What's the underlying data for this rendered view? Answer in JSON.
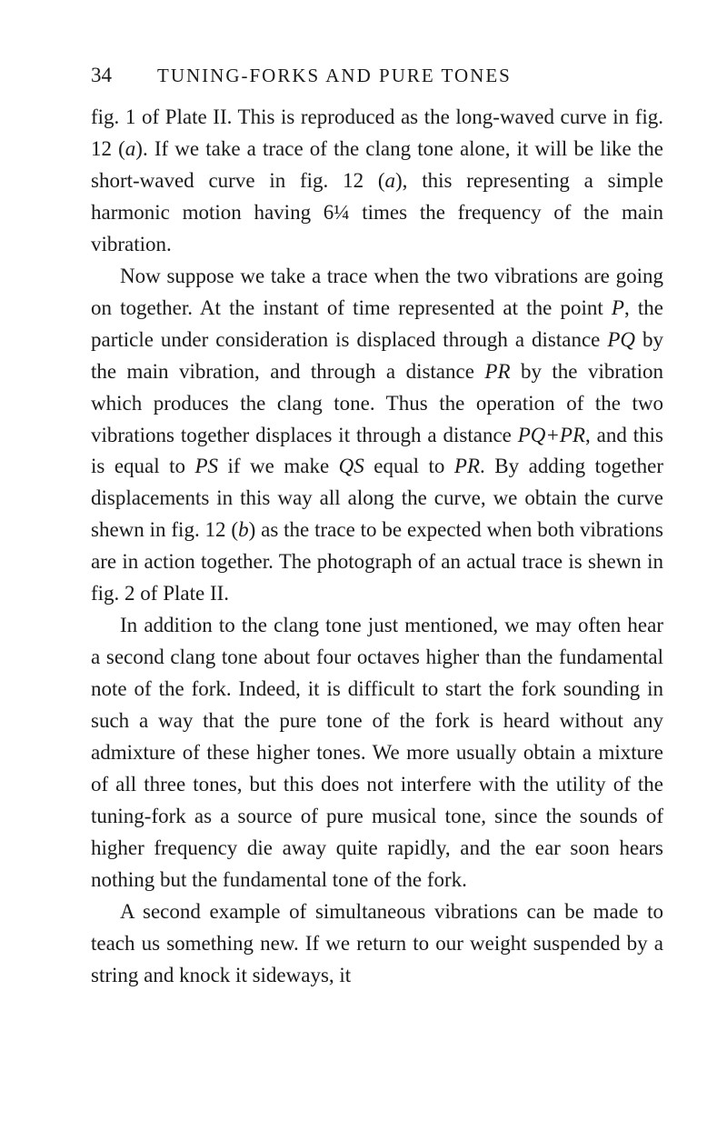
{
  "page": {
    "number": "34",
    "chapterTitle": "TUNING-FORKS AND PURE TONES"
  },
  "paragraphs": {
    "p1": {
      "pre1": "fig. 1 of Plate II. This is reproduced as the long-waved curve in fig. 12 (",
      "i1": "a",
      "mid1": "). If we take a trace of the clang tone alone, it will be like the short-waved curve in fig. 12 (",
      "i2": "a",
      "post1": "), this representing a simple harmonic motion having 6¼ times the frequency of the main vibration."
    },
    "p2": {
      "pre1": "Now suppose we take a trace when the two vibrations are going on together. At the instant of time represented at the point ",
      "i1": "P",
      "mid1": ", the particle under consideration is displaced through a distance ",
      "i2": "PQ",
      "mid2": " by the main vibration, and through a distance ",
      "i3": "PR",
      "mid3": " by the vibration which produces the clang tone. Thus the operation of the two vibrations together displaces it through a distance ",
      "i4": "PQ+PR",
      "mid4": ", and this is equal to ",
      "i5": "PS",
      "mid5": " if we make ",
      "i6": "QS",
      "mid6": " equal to ",
      "i7": "PR",
      "mid7": ". By adding together displacements in this way all along the curve, we obtain the curve shewn in fig. 12 (",
      "i8": "b",
      "post1": ") as the trace to be expected when both vibrations are in action together. The photo­graph of an actual trace is shewn in fig. 2 of Plate II."
    },
    "p3": {
      "text": "In addition to the clang tone just mentioned, we may often hear a second clang tone about four octaves higher than the fundamental note of the fork. Indeed, it is difficult to start the fork sounding in such a way that the pure tone of the fork is heard without any admixture of these higher tones. We more usually obtain a mixture of all three tones, but this does not interfere with the utility of the tuning-fork as a source of pure musical tone, since the sounds of higher frequency die away quite rapidly, and the ear soon hears nothing but the funda­mental tone of the fork."
    },
    "p4": {
      "text": "A second example of simultaneous vibrations can be made to teach us something new. If we return to our weight suspended by a string and knock it sideways, it"
    }
  }
}
